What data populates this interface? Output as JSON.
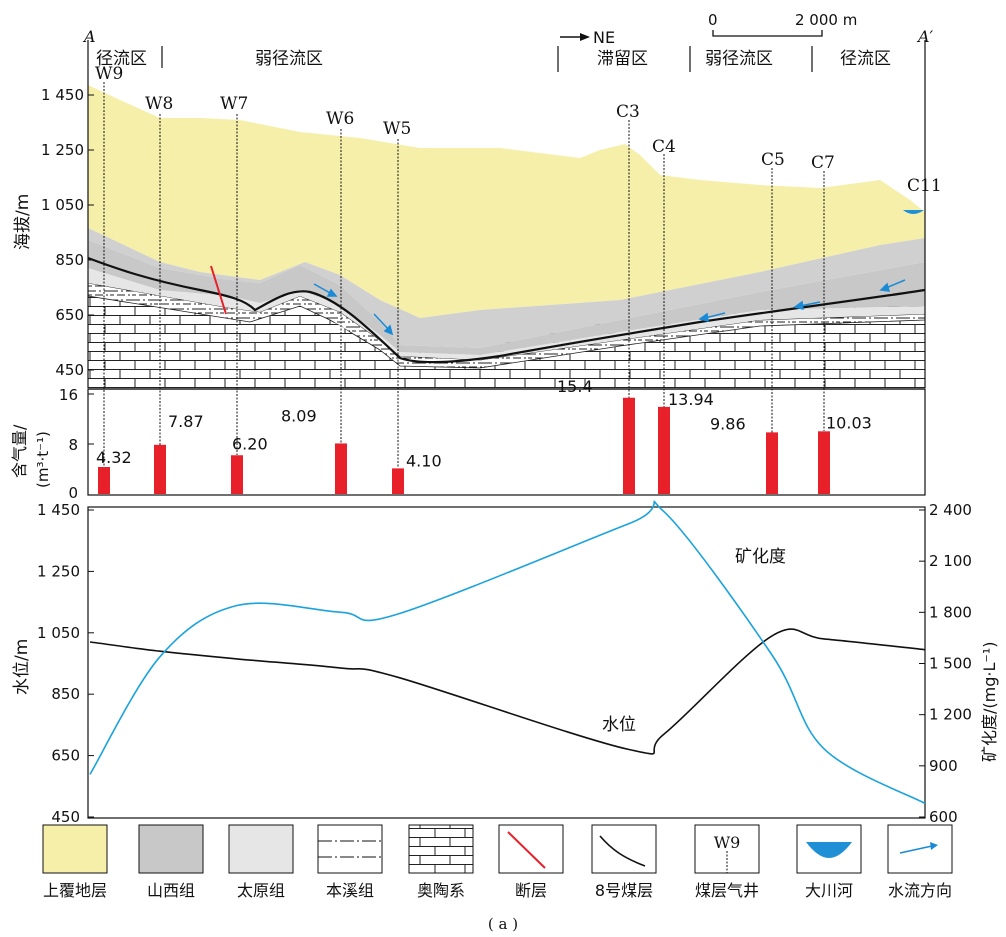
{
  "section": {
    "label_start": "A",
    "label_end": "A′",
    "direction": "NE",
    "scale_start": "0",
    "scale_end": "2 000 m",
    "zones": [
      "径流区",
      "弱径流区",
      "滞留区",
      "弱径流区",
      "径流区"
    ],
    "y_axis_label": "海拔/m",
    "y_ticks": [
      "1 450",
      "1 250",
      "1 050",
      "850",
      "650",
      "450"
    ],
    "wells": [
      {
        "name": "W9",
        "gas": 4.32,
        "gas_label": "4.32"
      },
      {
        "name": "W8",
        "gas": 7.87,
        "gas_label": "7.87"
      },
      {
        "name": "W7",
        "gas": 6.2,
        "gas_label": "6.20"
      },
      {
        "name": "W6",
        "gas": 8.09,
        "gas_label": "8.09"
      },
      {
        "name": "W5",
        "gas": 4.1,
        "gas_label": "4.10"
      },
      {
        "name": "C3",
        "gas": 15.4,
        "gas_label": "15.4"
      },
      {
        "name": "C4",
        "gas": 13.94,
        "gas_label": "13.94"
      },
      {
        "name": "C5",
        "gas": 9.86,
        "gas_label": "9.86"
      },
      {
        "name": "C7",
        "gas": 10.03,
        "gas_label": "10.03"
      },
      {
        "name": "C11"
      }
    ]
  },
  "gas_panel": {
    "ylabel_line1": "含气量/",
    "ylabel_line2": "(m³·t⁻¹)",
    "y_ticks": [
      "16",
      "8",
      "0"
    ]
  },
  "bottom_panel": {
    "left_label": "水位/m",
    "right_label": "矿化度/(mg·L⁻¹)",
    "left_ticks": [
      "1 450",
      "1 250",
      "1 050",
      "850",
      "650",
      "450"
    ],
    "right_ticks": [
      "2 400",
      "2 100",
      "1 800",
      "1 500",
      "1 200",
      "900",
      "600"
    ],
    "label_water": "水位",
    "label_tds": "矿化度"
  },
  "chart_data": {
    "type": "line",
    "x_wells": [
      "W9",
      "W8",
      "W7",
      "W6",
      "W5",
      "C3",
      "C4",
      "C5",
      "C7",
      "C11"
    ],
    "series": [
      {
        "name": "水位",
        "axis": "left",
        "values": [
          1020,
          990,
          965,
          935,
          905,
          670,
          720,
          1040,
          1030,
          995
        ]
      },
      {
        "name": "矿化度",
        "axis": "right",
        "values": [
          850,
          1540,
          1840,
          1800,
          1790,
          2320,
          2390,
          1550,
          1000,
          680
        ]
      }
    ],
    "left_ylim": [
      450,
      1450
    ],
    "right_ylim": [
      600,
      2400
    ]
  },
  "legend": [
    {
      "label": "上覆地层",
      "icon": "overburden-swatch"
    },
    {
      "label": "山西组",
      "icon": "shanxi-swatch"
    },
    {
      "label": "太原组",
      "icon": "taiyuan-swatch"
    },
    {
      "label": "本溪组",
      "icon": "benxi-swatch"
    },
    {
      "label": "奥陶系",
      "icon": "ordovician-brick-swatch"
    },
    {
      "label": "断层",
      "icon": "fault-icon"
    },
    {
      "label": "8号煤层",
      "icon": "coal-seam-icon"
    },
    {
      "label": "煤层气井",
      "icon": "well-icon",
      "inner": "W9"
    },
    {
      "label": "大川河",
      "icon": "river-icon"
    },
    {
      "label": "水流方向",
      "icon": "flow-arrow-icon"
    }
  ],
  "caption": "( a )",
  "colors": {
    "overburden": "#f6efaa",
    "shanxi": "#c8c8c8",
    "taiyuan": "#e6e6e6",
    "gas_bar": "#e8202a",
    "fault": "#e8202a",
    "tds_line": "#1aa3dd",
    "water_line": "#111111",
    "river": "#1f8fd6",
    "flow_arrow": "#1a8ad6"
  }
}
